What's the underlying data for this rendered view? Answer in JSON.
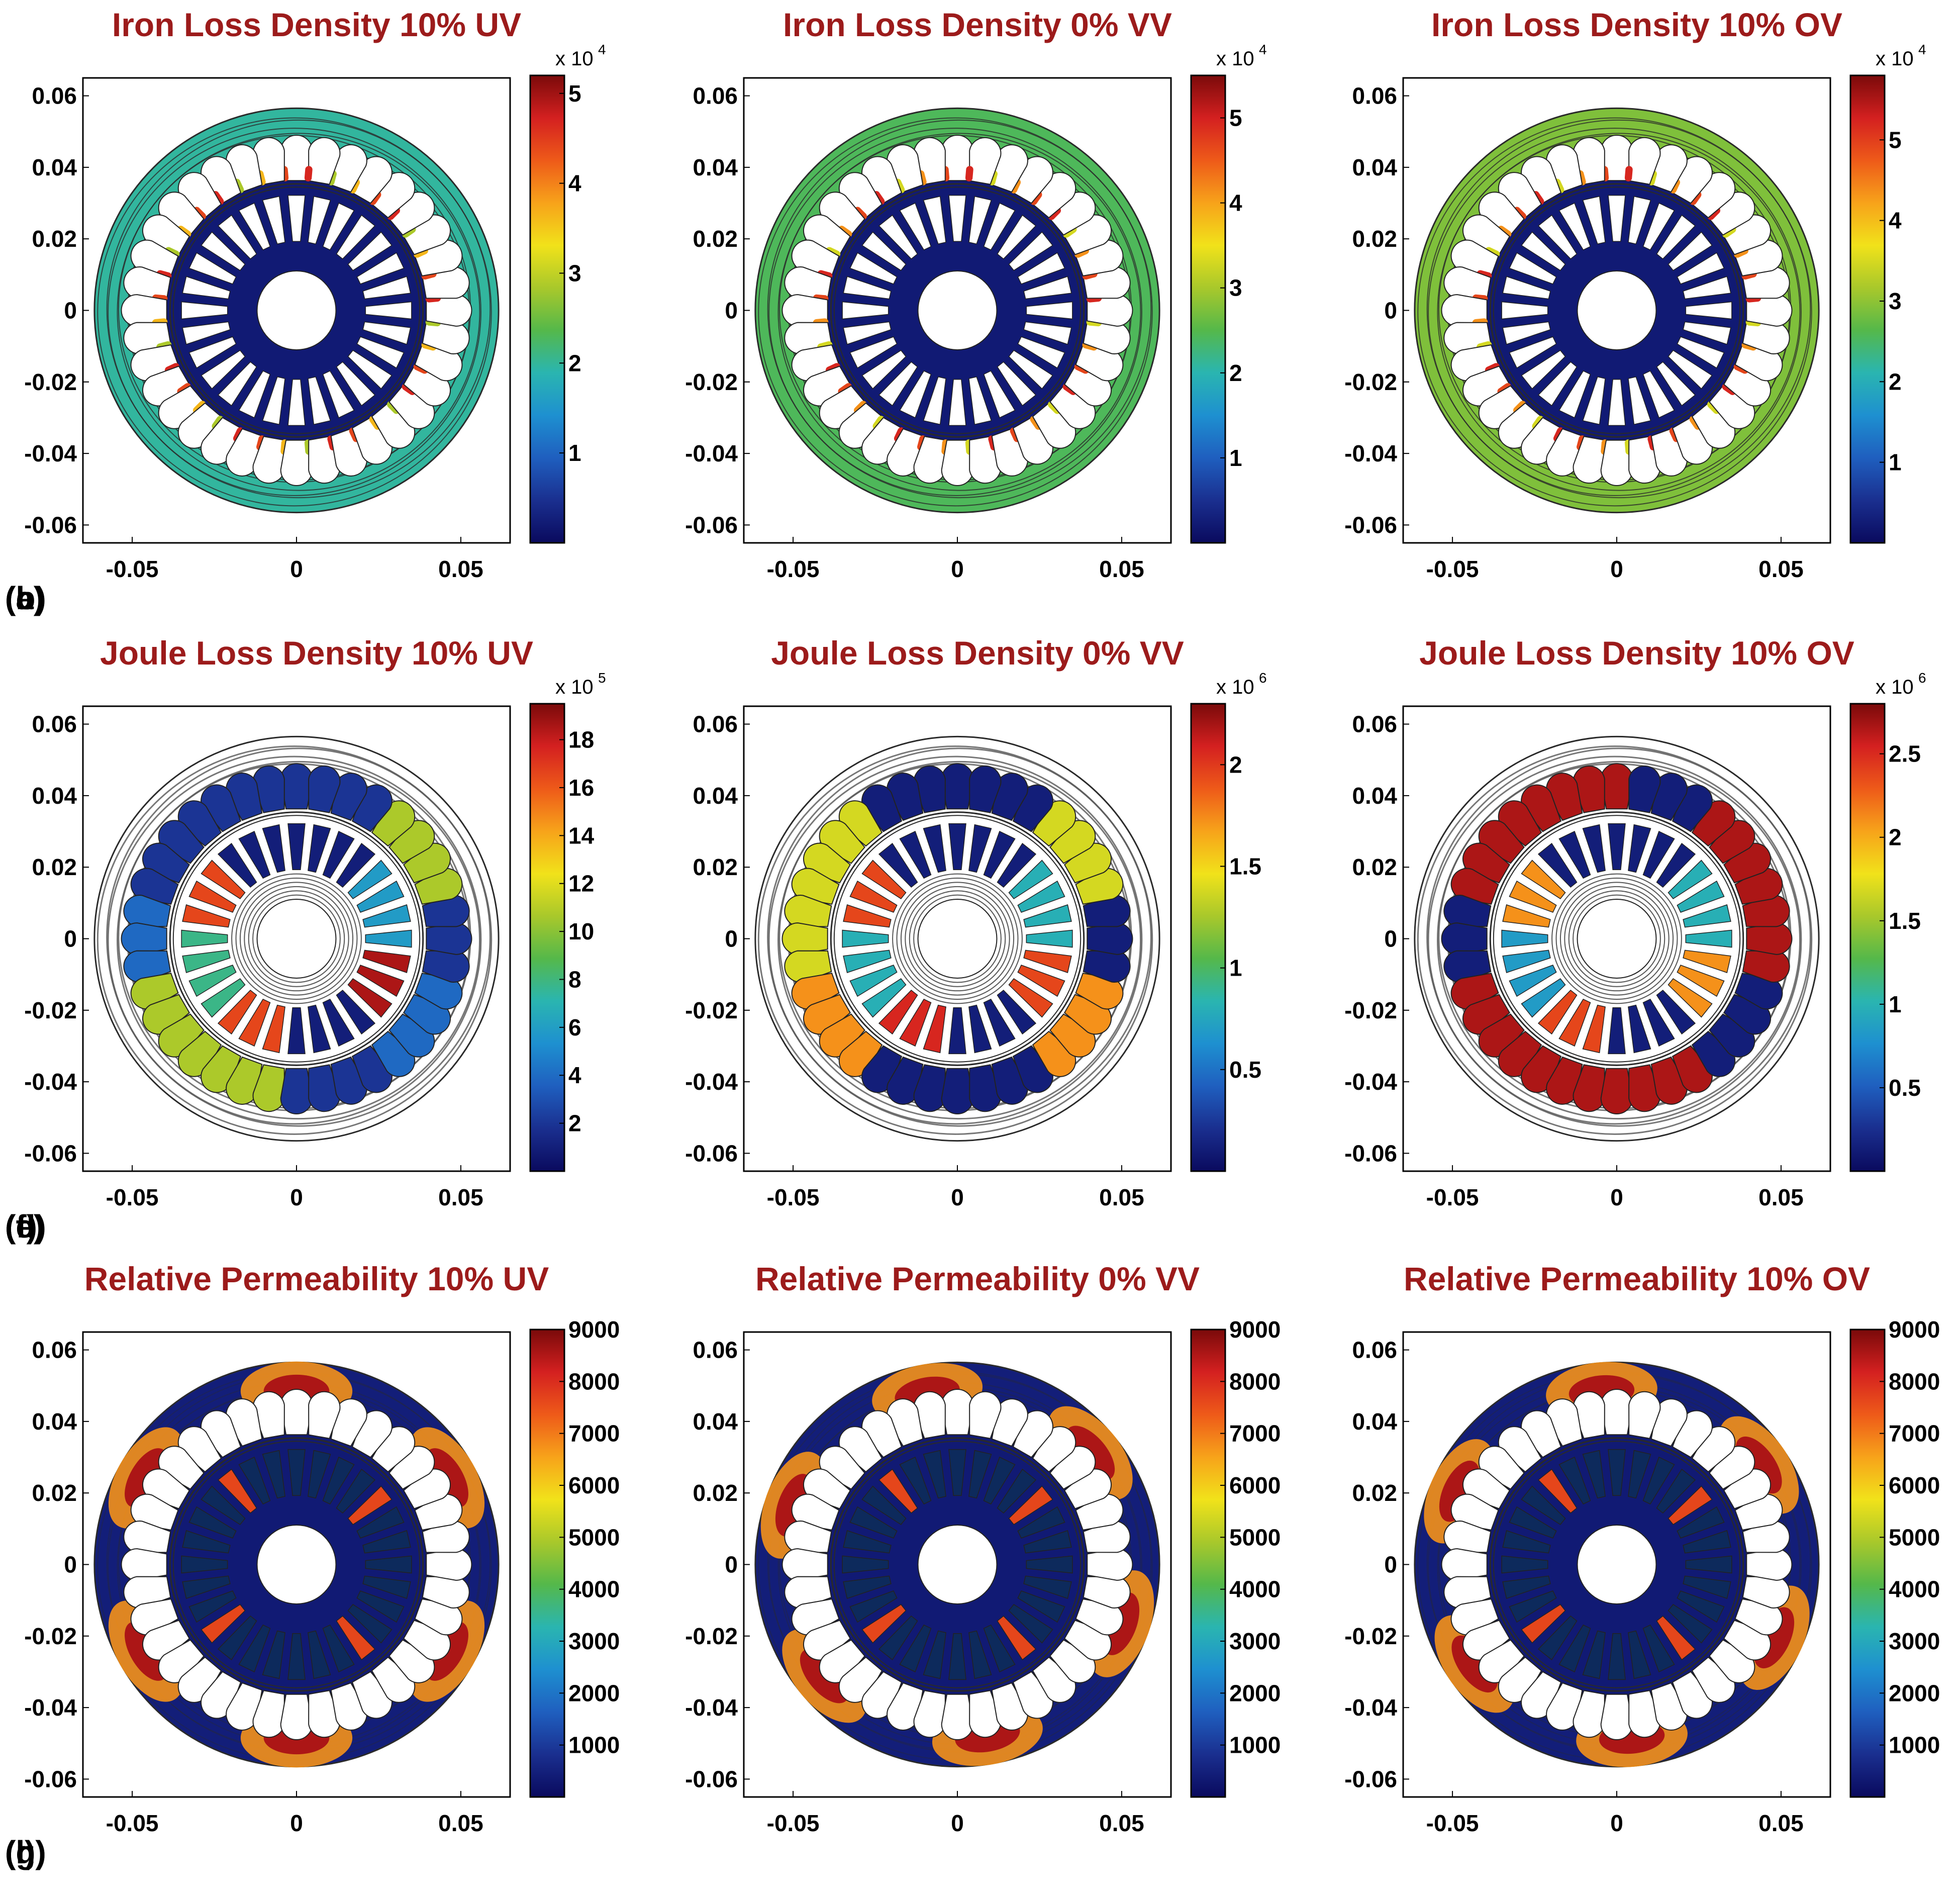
{
  "figure": {
    "colors": {
      "title": "#9c1b1b",
      "axis": "#000000",
      "contour": "#2a2a2a",
      "joule_contour": "#555555",
      "slot_fill": "#ffffff",
      "permeability_bar": "#0d2a5c"
    },
    "colormap": [
      "#0a0a5e",
      "#1a2f8f",
      "#1f5fbf",
      "#1e90d0",
      "#2ab5b0",
      "#55b84a",
      "#a8c82b",
      "#f1e21a",
      "#f7a31a",
      "#ee5a19",
      "#d42020",
      "#7a0a0a"
    ],
    "panels_layout": "3x3"
  },
  "chart_data": [
    {
      "panel": "a",
      "label": "(a)",
      "type": "heatmap",
      "title": "Iron Loss Density 10% UV",
      "quantity": "iron",
      "xlim": [
        -0.065,
        0.065
      ],
      "ylim": [
        -0.065,
        0.065
      ],
      "xticks": [
        -0.05,
        0,
        0.05
      ],
      "xtick_labels": [
        "-0.05",
        "0",
        "0.05"
      ],
      "yticks": [
        0.06,
        0.04,
        0.02,
        0,
        -0.02,
        -0.04,
        -0.06
      ],
      "ytick_labels": [
        "0.06",
        "0.04",
        "0.02",
        "0",
        "-0.02",
        "-0.04",
        "-0.06"
      ],
      "colorbar": {
        "min": 0,
        "max": 52000,
        "ticks": [
          10000,
          20000,
          30000,
          40000,
          50000
        ],
        "tick_labels": [
          "1",
          "2",
          "3",
          "4",
          "5"
        ],
        "exponent": "x 10",
        "exponent_power": "4"
      },
      "stator_level": 0.38,
      "rotor_level": 0.02,
      "slot_levels": [
        0.85,
        0.7,
        0.55,
        0.9
      ]
    },
    {
      "panel": "b",
      "label": "(b)",
      "type": "heatmap",
      "title": "Iron Loss Density 0% VV",
      "quantity": "iron",
      "xlim": [
        -0.065,
        0.065
      ],
      "ylim": [
        -0.065,
        0.065
      ],
      "xticks": [
        -0.05,
        0,
        0.05
      ],
      "xtick_labels": [
        "-0.05",
        "0",
        "0.05"
      ],
      "yticks": [
        0.06,
        0.04,
        0.02,
        0,
        -0.02,
        -0.04,
        -0.06
      ],
      "ytick_labels": [
        "0.06",
        "0.04",
        "0.02",
        "0",
        "-0.02",
        "-0.04",
        "-0.06"
      ],
      "colorbar": {
        "min": 0,
        "max": 55000,
        "ticks": [
          10000,
          20000,
          30000,
          40000,
          50000
        ],
        "tick_labels": [
          "1",
          "2",
          "3",
          "4",
          "5"
        ],
        "exponent": "x 10",
        "exponent_power": "4"
      },
      "stator_level": 0.44,
      "rotor_level": 0.02,
      "slot_levels": [
        0.85,
        0.75,
        0.6,
        0.9
      ]
    },
    {
      "panel": "c",
      "label": "(c)",
      "type": "heatmap",
      "title": "Iron Loss Density 10% OV",
      "quantity": "iron",
      "xlim": [
        -0.065,
        0.065
      ],
      "ylim": [
        -0.065,
        0.065
      ],
      "xticks": [
        -0.05,
        0,
        0.05
      ],
      "xtick_labels": [
        "-0.05",
        "0",
        "0.05"
      ],
      "yticks": [
        0.06,
        0.04,
        0.02,
        0,
        -0.02,
        -0.04,
        -0.06
      ],
      "ytick_labels": [
        "0.06",
        "0.04",
        "0.02",
        "0",
        "-0.02",
        "-0.04",
        "-0.06"
      ],
      "colorbar": {
        "min": 0,
        "max": 58000,
        "ticks": [
          10000,
          20000,
          30000,
          40000,
          50000
        ],
        "tick_labels": [
          "1",
          "2",
          "3",
          "4",
          "5"
        ],
        "exponent": "x 10",
        "exponent_power": "4"
      },
      "stator_level": 0.5,
      "rotor_level": 0.02,
      "slot_levels": [
        0.85,
        0.75,
        0.6,
        0.9
      ]
    },
    {
      "panel": "d",
      "label": "(d)",
      "type": "heatmap",
      "title": "Joule Loss Density 10% UV",
      "quantity": "joule",
      "xlim": [
        -0.065,
        0.065
      ],
      "ylim": [
        -0.065,
        0.065
      ],
      "xticks": [
        -0.05,
        0,
        0.05
      ],
      "xtick_labels": [
        "-0.05",
        "0",
        "0.05"
      ],
      "yticks": [
        0.06,
        0.04,
        0.02,
        0,
        -0.02,
        -0.04,
        -0.06
      ],
      "ytick_labels": [
        "0.06",
        "0.04",
        "0.02",
        "0",
        "-0.02",
        "-0.04",
        "-0.06"
      ],
      "colorbar": {
        "min": 0,
        "max": 1950000,
        "ticks": [
          200000,
          400000,
          600000,
          800000,
          1000000,
          1200000,
          1400000,
          1600000,
          1800000
        ],
        "tick_labels": [
          "2",
          "4",
          "6",
          "8",
          "10",
          "12",
          "14",
          "16",
          "18"
        ],
        "exponent": "x 10",
        "exponent_power": "5"
      },
      "stator_slot_levels": [
        0.1,
        0.1,
        0.2,
        0.55,
        0.55,
        0.1,
        0.2,
        0.1,
        0.55,
        0.1
      ],
      "rotor_bar_levels": [
        0.05,
        0.85,
        0.4,
        0.85,
        0.05,
        0.95,
        0.3,
        0.05
      ]
    },
    {
      "panel": "e",
      "label": "(e)",
      "type": "heatmap",
      "title": "Joule Loss Density 0% VV",
      "quantity": "joule",
      "xlim": [
        -0.065,
        0.065
      ],
      "ylim": [
        -0.065,
        0.065
      ],
      "xticks": [
        -0.05,
        0,
        0.05
      ],
      "xtick_labels": [
        "-0.05",
        "0",
        "0.05"
      ],
      "yticks": [
        0.06,
        0.04,
        0.02,
        0,
        -0.02,
        -0.04,
        -0.06
      ],
      "ytick_labels": [
        "0.06",
        "0.04",
        "0.02",
        "0",
        "-0.02",
        "-0.04",
        "-0.06"
      ],
      "colorbar": {
        "min": 0,
        "max": 2300000,
        "ticks": [
          500000,
          1000000,
          1500000,
          2000000
        ],
        "tick_labels": [
          "0.5",
          "1",
          "1.5",
          "2"
        ],
        "exponent": "x 10",
        "exponent_power": "6"
      },
      "stator_slot_levels": [
        0.05,
        0.6,
        0.6,
        0.75,
        0.05,
        0.05,
        0.75,
        0.05,
        0.6,
        0.05
      ],
      "rotor_bar_levels": [
        0.05,
        0.85,
        0.35,
        0.9,
        0.05,
        0.85,
        0.35,
        0.05
      ]
    },
    {
      "panel": "f",
      "label": "(f)",
      "type": "heatmap",
      "title": "Joule Loss Density 10% OV",
      "quantity": "joule",
      "xlim": [
        -0.065,
        0.065
      ],
      "ylim": [
        -0.065,
        0.065
      ],
      "xticks": [
        -0.05,
        0,
        0.05
      ],
      "xtick_labels": [
        "-0.05",
        "0",
        "0.05"
      ],
      "yticks": [
        0.06,
        0.04,
        0.02,
        0,
        -0.02,
        -0.04,
        -0.06
      ],
      "ytick_labels": [
        "0.06",
        "0.04",
        "0.02",
        "0",
        "-0.02",
        "-0.04",
        "-0.06"
      ],
      "colorbar": {
        "min": 0,
        "max": 2800000,
        "ticks": [
          500000,
          1000000,
          1500000,
          2000000,
          2500000
        ],
        "tick_labels": [
          "0.5",
          "1",
          "1.5",
          "2",
          "2.5"
        ],
        "exponent": "x 10",
        "exponent_power": "6"
      },
      "stator_slot_levels": [
        0.95,
        0.95,
        0.05,
        0.95,
        0.95,
        0.95,
        0.05,
        0.95,
        0.95,
        0.05
      ],
      "rotor_bar_levels": [
        0.05,
        0.75,
        0.3,
        0.85,
        0.05,
        0.75,
        0.35,
        0.05
      ]
    },
    {
      "panel": "g",
      "label": "(g)",
      "type": "heatmap",
      "title": "Relative Permeability 10% UV",
      "quantity": "permeability",
      "xlim": [
        -0.065,
        0.065
      ],
      "ylim": [
        -0.065,
        0.065
      ],
      "xticks": [
        -0.05,
        0,
        0.05
      ],
      "xtick_labels": [
        "-0.05",
        "0",
        "0.05"
      ],
      "yticks": [
        0.06,
        0.04,
        0.02,
        0,
        -0.02,
        -0.04,
        -0.06
      ],
      "ytick_labels": [
        "0.06",
        "0.04",
        "0.02",
        "0",
        "-0.02",
        "-0.04",
        "-0.06"
      ],
      "colorbar": {
        "min": 0,
        "max": 9000,
        "ticks": [
          1000,
          2000,
          3000,
          4000,
          5000,
          6000,
          7000,
          8000,
          9000
        ],
        "tick_labels": [
          "1000",
          "2000",
          "3000",
          "4000",
          "5000",
          "6000",
          "7000",
          "8000",
          "9000"
        ],
        "exponent": "",
        "exponent_power": ""
      },
      "hotspot_angles_deg": [
        30,
        90,
        150,
        210,
        270,
        330
      ]
    },
    {
      "panel": "h",
      "label": "(h)",
      "type": "heatmap",
      "title": "Relative Permeability 0% VV",
      "quantity": "permeability",
      "xlim": [
        -0.065,
        0.065
      ],
      "ylim": [
        -0.065,
        0.065
      ],
      "xticks": [
        -0.05,
        0,
        0.05
      ],
      "xtick_labels": [
        "-0.05",
        "0",
        "0.05"
      ],
      "yticks": [
        0.06,
        0.04,
        0.02,
        0,
        -0.02,
        -0.04,
        -0.06
      ],
      "ytick_labels": [
        "0.06",
        "0.04",
        "0.02",
        "0",
        "-0.02",
        "-0.04",
        "-0.06"
      ],
      "colorbar": {
        "min": 0,
        "max": 9000,
        "ticks": [
          1000,
          2000,
          3000,
          4000,
          5000,
          6000,
          7000,
          8000,
          9000
        ],
        "tick_labels": [
          "1000",
          "2000",
          "3000",
          "4000",
          "5000",
          "6000",
          "7000",
          "8000",
          "9000"
        ],
        "exponent": "",
        "exponent_power": ""
      },
      "hotspot_angles_deg": [
        40,
        100,
        160,
        220,
        280,
        340
      ]
    },
    {
      "panel": "i",
      "label": "(i)",
      "type": "heatmap",
      "title": "Relative Permeability 10% OV",
      "quantity": "permeability",
      "xlim": [
        -0.065,
        0.065
      ],
      "ylim": [
        -0.065,
        0.065
      ],
      "xticks": [
        -0.05,
        0,
        0.05
      ],
      "xtick_labels": [
        "-0.05",
        "0",
        "0.05"
      ],
      "yticks": [
        0.06,
        0.04,
        0.02,
        0,
        -0.02,
        -0.04,
        -0.06
      ],
      "ytick_labels": [
        "0.06",
        "0.04",
        "0.02",
        "0",
        "-0.02",
        "-0.04",
        "-0.06"
      ],
      "colorbar": {
        "min": 0,
        "max": 9000,
        "ticks": [
          1000,
          2000,
          3000,
          4000,
          5000,
          6000,
          7000,
          8000,
          9000
        ],
        "tick_labels": [
          "1000",
          "2000",
          "3000",
          "4000",
          "5000",
          "6000",
          "7000",
          "8000",
          "9000"
        ],
        "exponent": "",
        "exponent_power": ""
      },
      "hotspot_angles_deg": [
        35,
        95,
        155,
        215,
        275,
        335
      ]
    }
  ]
}
